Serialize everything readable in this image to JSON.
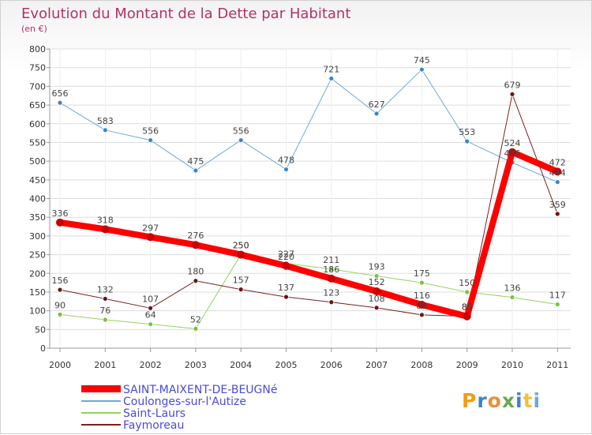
{
  "chart_data": {
    "type": "line",
    "title": "Evolution du Montant de la Dette par Habitant",
    "subtitle": "(en €)",
    "categories": [
      "2000",
      "2001",
      "2002",
      "2003",
      "2004",
      "2005",
      "2006",
      "2007",
      "2008",
      "2009",
      "2010",
      "2011"
    ],
    "ylim": [
      0,
      800
    ],
    "yticks": [
      0,
      50,
      100,
      150,
      200,
      250,
      300,
      350,
      400,
      450,
      500,
      550,
      600,
      650,
      700,
      750,
      800
    ],
    "grid": true,
    "legend_position": "bottom-left",
    "series": [
      {
        "name": "SAINT-MAIXENT-DE-BEUGNé",
        "color": "#ff0000",
        "marker": "#cc0000",
        "width": 8,
        "values": [
          336,
          318,
          297,
          276,
          250,
          220,
          186,
          152,
          116,
          85,
          524,
          472
        ]
      },
      {
        "name": "Coulonges-sur-l'Autize",
        "color": "#6fa8dc",
        "marker": "#3d85c6",
        "width": 1,
        "values": [
          656,
          583,
          556,
          475,
          556,
          478,
          721,
          627,
          745,
          553,
          496,
          444
        ]
      },
      {
        "name": "Saint-Laurs",
        "color": "#93d35d",
        "marker": "#7ac142",
        "width": 1,
        "values": [
          90,
          76,
          64,
          52,
          250,
          227,
          211,
          193,
          175,
          150,
          136,
          117
        ]
      },
      {
        "name": "Faymoreau",
        "color": "#7a2020",
        "marker": "#6b1414",
        "width": 1,
        "values": [
          156,
          132,
          107,
          180,
          157,
          137,
          123,
          108,
          89,
          85,
          679,
          359
        ]
      }
    ]
  },
  "logo": {
    "text": "Proxiti"
  }
}
